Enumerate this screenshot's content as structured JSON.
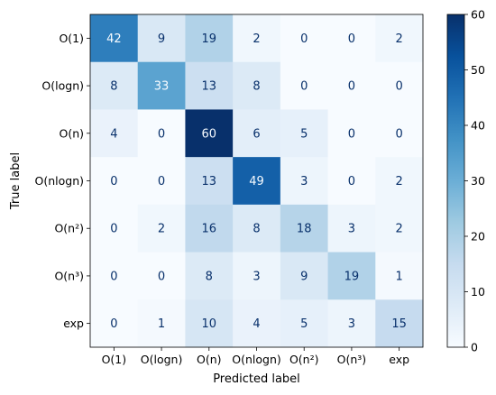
{
  "chart_data": {
    "type": "heatmap",
    "title": "",
    "xlabel": "Predicted label",
    "ylabel": "True label",
    "x_categories": [
      "O(1)",
      "O(logn)",
      "O(n)",
      "O(nlogn)",
      "O(n²)",
      "O(n³)",
      "exp"
    ],
    "y_categories": [
      "O(1)",
      "O(logn)",
      "O(n)",
      "O(nlogn)",
      "O(n²)",
      "O(n³)",
      "exp"
    ],
    "matrix": [
      [
        42,
        9,
        19,
        2,
        0,
        0,
        2
      ],
      [
        8,
        33,
        13,
        8,
        0,
        0,
        0
      ],
      [
        4,
        0,
        60,
        6,
        5,
        0,
        0
      ],
      [
        0,
        0,
        13,
        49,
        3,
        0,
        2
      ],
      [
        0,
        2,
        16,
        8,
        18,
        3,
        2
      ],
      [
        0,
        0,
        8,
        3,
        9,
        19,
        1
      ],
      [
        0,
        1,
        10,
        4,
        5,
        3,
        15
      ]
    ],
    "colormap": "Blues",
    "colorbar": {
      "range": [
        0,
        60
      ],
      "ticks": [
        0,
        10,
        20,
        30,
        40,
        50,
        60
      ]
    },
    "grid": false,
    "legend": "none"
  },
  "colors": {
    "cmap_low": "#f7fbff",
    "cmap_high": "#08306b",
    "text_light": "#f7fbff",
    "text_dark": "#08306b"
  }
}
